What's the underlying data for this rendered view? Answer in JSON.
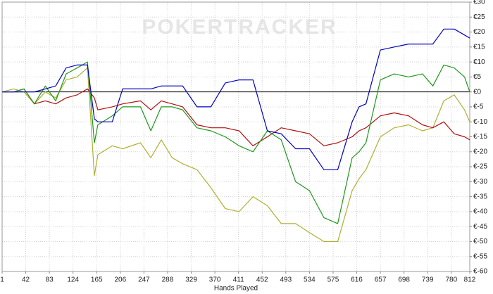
{
  "chart_data": {
    "type": "line",
    "watermark": "POKERTRACKER",
    "x_label": "Hands Played",
    "x": [
      1,
      21,
      39,
      57,
      76,
      94,
      112,
      131,
      149,
      161,
      167,
      192,
      210,
      241,
      259,
      277,
      296,
      314,
      339,
      363,
      388,
      412,
      436,
      461,
      485,
      510,
      534,
      559,
      583,
      608,
      620,
      632,
      657,
      681,
      706,
      730,
      748,
      767,
      785,
      803,
      812
    ],
    "series": [
      {
        "color": "#b0b030",
        "values": [
          0,
          1,
          0,
          -4,
          0,
          -2,
          4,
          5,
          8,
          -28,
          -21,
          -18,
          -19,
          -17,
          -22,
          -16,
          -22,
          -24,
          -26,
          -32,
          -39,
          -40,
          -35,
          -38,
          -44,
          -44,
          -47,
          -50,
          -50,
          -33,
          -29,
          -26,
          -15,
          -12,
          -11,
          -13,
          -12,
          -3,
          -1,
          -6,
          -10
        ]
      },
      {
        "color": "#b01010",
        "values": [
          0,
          0,
          1,
          -4,
          -3,
          -4,
          -2,
          -1,
          1,
          -2,
          -6,
          -5,
          -4,
          -3,
          -6,
          -3,
          -4,
          -5,
          -11,
          -12,
          -12,
          -13,
          -18,
          -15,
          -12,
          -13,
          -14,
          -18,
          -17,
          -15,
          -13,
          -12,
          -8,
          -7,
          -8,
          -11,
          -12,
          -10,
          -14,
          -15,
          -16
        ]
      },
      {
        "color": "#1a9a1a",
        "values": [
          0,
          0,
          1,
          -4,
          2,
          -3,
          6,
          8,
          10,
          -17,
          -11,
          -8,
          -5,
          -5,
          -13,
          -5,
          -5,
          -6,
          -12,
          -13,
          -15,
          -18,
          -20,
          -13,
          -16,
          -30,
          -33,
          -42,
          -44,
          -22,
          -20,
          -17,
          4,
          6,
          5,
          6,
          2,
          9,
          8,
          5,
          0
        ]
      },
      {
        "color": "#0000c0",
        "values": [
          0,
          0,
          0,
          0,
          1,
          2,
          8,
          9,
          9,
          -9,
          -10,
          -10,
          1,
          1,
          1,
          2,
          2,
          2,
          -5,
          -5,
          3,
          4,
          4,
          -13,
          -14,
          -19,
          -19,
          -26,
          -26,
          -10,
          -5,
          -4,
          14,
          15,
          16,
          16,
          16,
          21,
          21,
          19,
          18
        ]
      }
    ],
    "xlim": [
      1,
      812
    ],
    "xticks": [
      1,
      42,
      83,
      124,
      165,
      206,
      247,
      288,
      329,
      370,
      411,
      452,
      493,
      534,
      575,
      616,
      657,
      698,
      739,
      780,
      812
    ],
    "ylim": [
      -60,
      30
    ],
    "yticks": [
      {
        "value": 30,
        "label": "€30"
      },
      {
        "value": 25,
        "label": "€25"
      },
      {
        "value": 20,
        "label": "€20"
      },
      {
        "value": 15,
        "label": "€15"
      },
      {
        "value": 10,
        "label": "€10"
      },
      {
        "value": 5,
        "label": "€5"
      },
      {
        "value": 0,
        "label": "€0"
      },
      {
        "value": -5,
        "label": "€-5"
      },
      {
        "value": -10,
        "label": "€-10"
      },
      {
        "value": -15,
        "label": "€-15"
      },
      {
        "value": -20,
        "label": "€-20"
      },
      {
        "value": -25,
        "label": "€-25"
      },
      {
        "value": -30,
        "label": "€-30"
      },
      {
        "value": -35,
        "label": "€-35"
      },
      {
        "value": -40,
        "label": "€-40"
      },
      {
        "value": -45,
        "label": "€-45"
      },
      {
        "value": -50,
        "label": "€-50"
      },
      {
        "value": -55,
        "label": "€-55"
      },
      {
        "value": -60,
        "label": "€-60"
      }
    ],
    "grid": true
  }
}
